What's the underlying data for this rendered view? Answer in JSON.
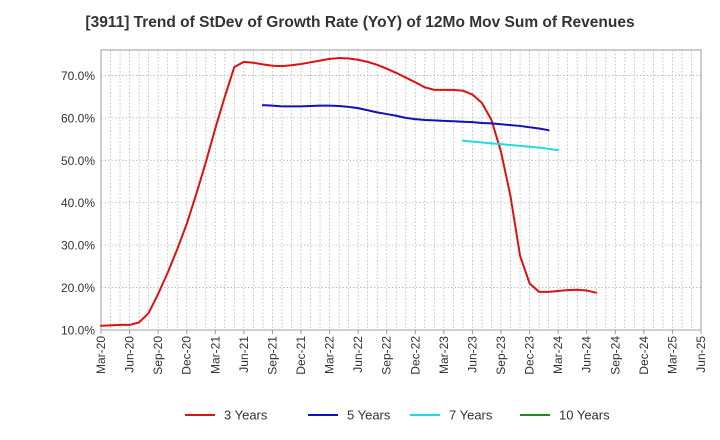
{
  "chart_data": {
    "type": "line",
    "title": "[3911]  Trend of StDev of Growth Rate (YoY) of 12Mo Mov Sum of Revenues",
    "xlabel": "",
    "ylabel": "",
    "ylim": [
      10,
      76
    ],
    "y_ticks": [
      10,
      20,
      30,
      40,
      50,
      60,
      70
    ],
    "y_tick_labels": [
      "10.0%",
      "20.0%",
      "30.0%",
      "40.0%",
      "50.0%",
      "60.0%",
      "70.0%"
    ],
    "grid": true,
    "legend_position": "bottom",
    "x_tick_labels": [
      "Mar-20",
      "Jun-20",
      "Sep-20",
      "Dec-20",
      "Mar-21",
      "Jun-21",
      "Sep-21",
      "Dec-21",
      "Mar-22",
      "Jun-22",
      "Sep-22",
      "Dec-22",
      "Mar-23",
      "Jun-23",
      "Sep-23",
      "Dec-23",
      "Mar-24",
      "Jun-24",
      "Sep-24",
      "Dec-24",
      "Mar-25",
      "Jun-25"
    ],
    "series": [
      {
        "name": "3 Years",
        "color": "#dd1111",
        "points": [
          [
            0,
            11.0
          ],
          [
            1,
            11.1
          ],
          [
            2,
            11.2
          ],
          [
            3,
            11.2
          ],
          [
            4,
            11.8
          ],
          [
            5,
            14.0
          ],
          [
            6,
            18.5
          ],
          [
            7,
            23.5
          ],
          [
            8,
            29.0
          ],
          [
            9,
            35.0
          ],
          [
            10,
            42.0
          ],
          [
            11,
            49.5
          ],
          [
            12,
            57.5
          ],
          [
            13,
            65.0
          ],
          [
            14,
            72.0
          ],
          [
            15,
            73.2
          ],
          [
            16,
            73.0
          ],
          [
            17,
            72.6
          ],
          [
            18,
            72.3
          ],
          [
            19,
            72.2
          ],
          [
            20,
            72.4
          ],
          [
            21,
            72.7
          ],
          [
            22,
            73.1
          ],
          [
            23,
            73.5
          ],
          [
            24,
            73.9
          ],
          [
            25,
            74.1
          ],
          [
            26,
            74.0
          ],
          [
            27,
            73.7
          ],
          [
            28,
            73.2
          ],
          [
            29,
            72.5
          ],
          [
            30,
            71.6
          ],
          [
            31,
            70.6
          ],
          [
            32,
            69.5
          ],
          [
            33,
            68.4
          ],
          [
            34,
            67.2
          ],
          [
            35,
            66.6
          ],
          [
            36,
            66.6
          ],
          [
            37,
            66.6
          ],
          [
            38,
            66.4
          ],
          [
            39,
            65.5
          ],
          [
            40,
            63.5
          ],
          [
            41,
            59.5
          ],
          [
            42,
            52.0
          ],
          [
            43,
            41.5
          ],
          [
            44,
            27.5
          ],
          [
            45,
            21.0
          ],
          [
            46,
            19.0
          ],
          [
            47,
            19.0
          ],
          [
            48,
            19.2
          ],
          [
            49,
            19.4
          ],
          [
            50,
            19.5
          ],
          [
            51,
            19.3
          ],
          [
            52,
            18.8
          ]
        ]
      },
      {
        "name": "5 Years",
        "color": "#1111bb",
        "points": [
          [
            17,
            63.0
          ],
          [
            18,
            62.9
          ],
          [
            19,
            62.7
          ],
          [
            20,
            62.7
          ],
          [
            21,
            62.7
          ],
          [
            22,
            62.8
          ],
          [
            23,
            62.9
          ],
          [
            24,
            62.9
          ],
          [
            25,
            62.8
          ],
          [
            26,
            62.6
          ],
          [
            27,
            62.3
          ],
          [
            28,
            61.8
          ],
          [
            29,
            61.3
          ],
          [
            30,
            60.9
          ],
          [
            31,
            60.5
          ],
          [
            32,
            60.0
          ],
          [
            33,
            59.7
          ],
          [
            34,
            59.5
          ],
          [
            35,
            59.4
          ],
          [
            36,
            59.3
          ],
          [
            37,
            59.2
          ],
          [
            38,
            59.1
          ],
          [
            39,
            59.0
          ],
          [
            40,
            58.8
          ],
          [
            41,
            58.7
          ],
          [
            42,
            58.5
          ],
          [
            43,
            58.3
          ],
          [
            44,
            58.1
          ],
          [
            45,
            57.8
          ],
          [
            46,
            57.5
          ],
          [
            47,
            57.1
          ]
        ]
      },
      {
        "name": "7 Years",
        "color": "#22dddd",
        "points": [
          [
            38,
            54.6
          ],
          [
            39,
            54.4
          ],
          [
            40,
            54.2
          ],
          [
            41,
            54.0
          ],
          [
            42,
            53.8
          ],
          [
            43,
            53.6
          ],
          [
            44,
            53.4
          ],
          [
            45,
            53.2
          ],
          [
            46,
            53.0
          ],
          [
            47,
            52.7
          ],
          [
            48,
            52.4
          ]
        ]
      },
      {
        "name": "10 Years",
        "color": "#228822",
        "points": []
      }
    ]
  }
}
